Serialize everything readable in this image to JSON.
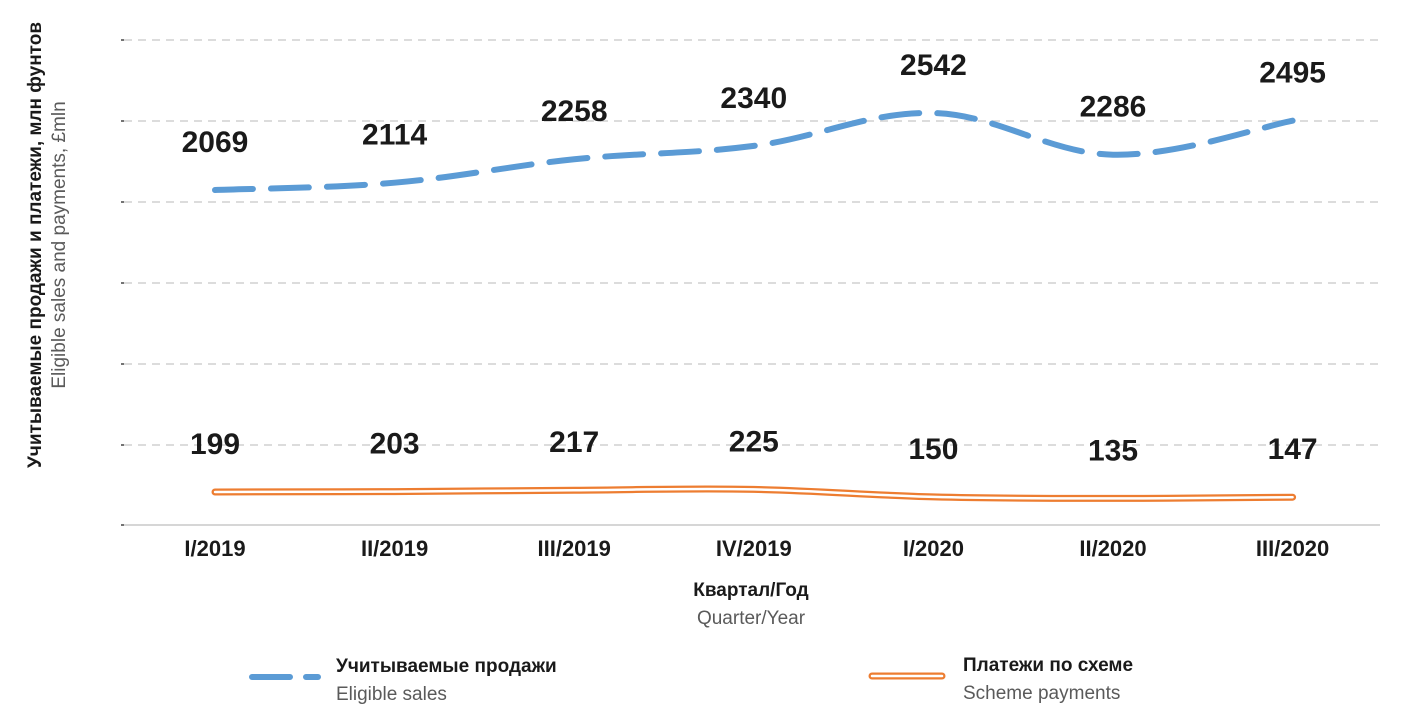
{
  "chart_data": {
    "type": "line",
    "categories": [
      "I/2019",
      "II/2019",
      "III/2019",
      "IV/2019",
      "I/2020",
      "II/2020",
      "III/2020"
    ],
    "series": [
      {
        "name": "Учитываемые продажи",
        "name_en": "Eligible sales",
        "values": [
          2069,
          2114,
          2258,
          2340,
          2542,
          2286,
          2495
        ],
        "color": "#5b9bd5",
        "style": "dashed"
      },
      {
        "name": "Платежи по схеме",
        "name_en": "Scheme payments",
        "values": [
          199,
          203,
          217,
          225,
          150,
          135,
          147
        ],
        "color": "#ed7d31",
        "style": "double"
      }
    ],
    "xlabel": "Квартал/Год",
    "xlabel_en": "Quarter/Year",
    "ylabel": "Учитываемые продажи и платежи, млн фунтов",
    "ylabel_en": "Eligible sales and payments, £mln",
    "grid": true,
    "legend_position": "bottom"
  }
}
